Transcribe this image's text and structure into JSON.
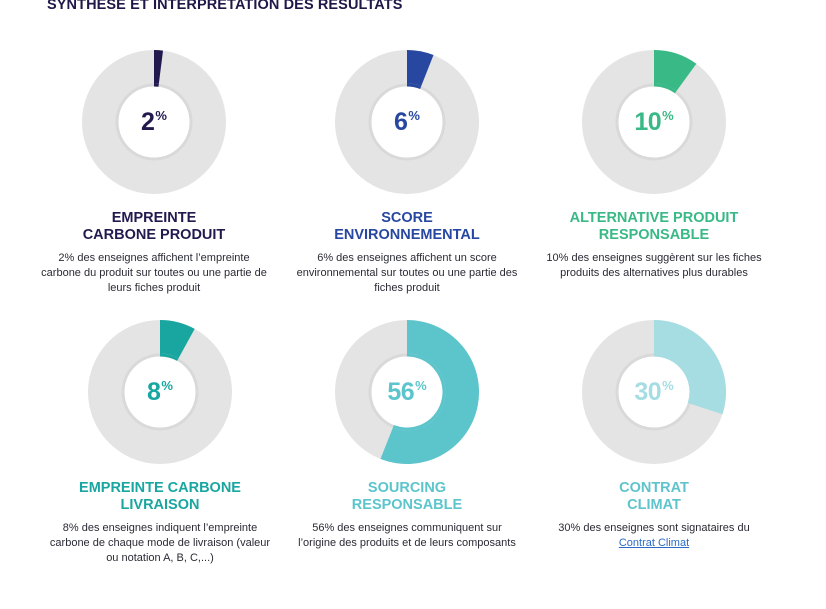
{
  "page": {
    "title": "SYNTHESE ET INTERPRETATION DES RESULTATS"
  },
  "colors": {
    "ring_gray": "#e4e4e4",
    "inner_ring": "#d9d9d9",
    "navy": "#221a4f",
    "blue": "#2747a0",
    "green": "#38b985",
    "teal": "#1aa6a0",
    "cyan": "#5cc5cc",
    "light_cyan": "#a5dde3"
  },
  "chart_data": [
    {
      "type": "pie",
      "values": [
        2,
        98
      ],
      "value_label": "2",
      "unit": "%",
      "title_lines": [
        "EMPREINTE",
        "CARBONE PRODUIT"
      ],
      "description": "2% des enseignes affichent l’empreinte carbone du produit sur toutes ou une partie de leurs fiches produit",
      "color": "#221a4f"
    },
    {
      "type": "pie",
      "values": [
        6,
        94
      ],
      "value_label": "6",
      "unit": "%",
      "title_lines": [
        "SCORE",
        "ENVIRONNEMENTAL"
      ],
      "description": "6% des enseignes affichent un score environnemental sur toutes ou une partie des fiches produit",
      "color": "#2747a0"
    },
    {
      "type": "pie",
      "values": [
        10,
        90
      ],
      "value_label": "10",
      "unit": "%",
      "title_lines": [
        "ALTERNATIVE PRODUIT",
        "RESPONSABLE"
      ],
      "description": "10% des enseignes suggèrent sur les fiches produits des alternatives plus durables",
      "color": "#38b985"
    },
    {
      "type": "pie",
      "values": [
        8,
        92
      ],
      "value_label": "8",
      "unit": "%",
      "title_lines": [
        "EMPREINTE CARBONE",
        "LIVRAISON"
      ],
      "description": "8% des enseignes indiquent l’empreinte carbone de chaque mode de livraison (valeur ou notation A, B, C,...)",
      "color": "#1aa6a0"
    },
    {
      "type": "pie",
      "values": [
        56,
        44
      ],
      "value_label": "56",
      "unit": "%",
      "title_lines": [
        "SOURCING",
        "RESPONSABLE"
      ],
      "description": "56% des enseignes communiquent sur l’origine des produits et de leurs composants",
      "color": "#5cc5cc"
    },
    {
      "type": "pie",
      "values": [
        30,
        70
      ],
      "value_label": "30",
      "unit": "%",
      "title_lines": [
        "CONTRAT",
        "CLIMAT"
      ],
      "description": "30% des enseignes sont signataires du",
      "link_text": "Contrat Climat",
      "color": "#a5dde3"
    }
  ]
}
